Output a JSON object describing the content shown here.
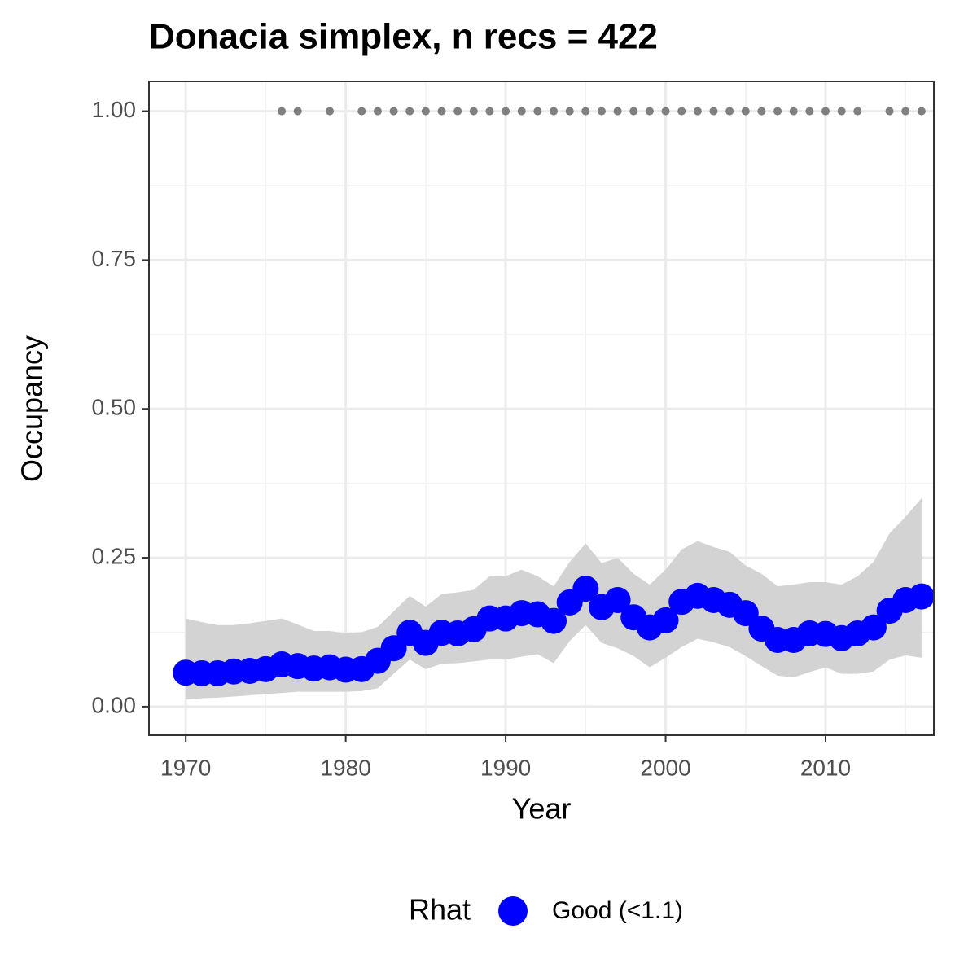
{
  "chart_data": {
    "type": "line",
    "title": "Donacia simplex, n recs = 422",
    "x_label": "Year",
    "y_label": "Occupancy",
    "legend_title": "Rhat",
    "legend_position": "bottom",
    "grid": true,
    "x": [
      1970,
      1971,
      1972,
      1973,
      1974,
      1975,
      1976,
      1977,
      1978,
      1979,
      1980,
      1981,
      1982,
      1983,
      1984,
      1985,
      1986,
      1987,
      1988,
      1989,
      1990,
      1991,
      1992,
      1993,
      1994,
      1995,
      1996,
      1997,
      1998,
      1999,
      2000,
      2001,
      2002,
      2003,
      2004,
      2005,
      2006,
      2007,
      2008,
      2009,
      2010,
      2011,
      2012,
      2013,
      2014,
      2015,
      2016
    ],
    "series": [
      {
        "name": "Good (<1.1)",
        "color": "#0000ff",
        "values": [
          0.057,
          0.056,
          0.056,
          0.059,
          0.06,
          0.063,
          0.071,
          0.068,
          0.064,
          0.066,
          0.062,
          0.063,
          0.077,
          0.098,
          0.124,
          0.107,
          0.124,
          0.123,
          0.13,
          0.148,
          0.148,
          0.157,
          0.155,
          0.144,
          0.175,
          0.198,
          0.167,
          0.179,
          0.15,
          0.133,
          0.145,
          0.176,
          0.186,
          0.179,
          0.171,
          0.157,
          0.131,
          0.112,
          0.112,
          0.123,
          0.122,
          0.115,
          0.123,
          0.133,
          0.161,
          0.179,
          0.185
        ]
      }
    ],
    "ribbon": {
      "color": "#d3d3d3",
      "upper": [
        0.148,
        0.142,
        0.137,
        0.137,
        0.14,
        0.144,
        0.148,
        0.138,
        0.127,
        0.127,
        0.123,
        0.125,
        0.134,
        0.16,
        0.186,
        0.168,
        0.189,
        0.192,
        0.196,
        0.219,
        0.219,
        0.23,
        0.219,
        0.202,
        0.243,
        0.274,
        0.241,
        0.25,
        0.223,
        0.205,
        0.23,
        0.264,
        0.278,
        0.268,
        0.26,
        0.237,
        0.223,
        0.202,
        0.205,
        0.209,
        0.209,
        0.205,
        0.219,
        0.243,
        0.291,
        0.319,
        0.35
      ],
      "lower": [
        0.012,
        0.014,
        0.015,
        0.017,
        0.019,
        0.021,
        0.023,
        0.025,
        0.025,
        0.025,
        0.025,
        0.026,
        0.031,
        0.055,
        0.079,
        0.063,
        0.072,
        0.073,
        0.076,
        0.079,
        0.079,
        0.084,
        0.088,
        0.073,
        0.11,
        0.137,
        0.107,
        0.098,
        0.085,
        0.066,
        0.082,
        0.1,
        0.114,
        0.108,
        0.1,
        0.085,
        0.068,
        0.052,
        0.049,
        0.058,
        0.066,
        0.055,
        0.055,
        0.059,
        0.079,
        0.086,
        0.082
      ]
    },
    "records": {
      "color": "#7f7f7f",
      "x": [
        1976,
        1977,
        1979,
        1981,
        1982,
        1983,
        1984,
        1985,
        1986,
        1987,
        1988,
        1989,
        1990,
        1991,
        1992,
        1993,
        1994,
        1995,
        1996,
        1997,
        1998,
        1999,
        2000,
        2001,
        2002,
        2003,
        2004,
        2005,
        2006,
        2007,
        2008,
        2009,
        2010,
        2011,
        2012,
        2014,
        2015,
        2016
      ],
      "values": [
        1,
        1,
        1,
        1,
        1,
        1,
        1,
        1,
        1,
        1,
        1,
        1,
        1,
        1,
        1,
        1,
        1,
        1,
        1,
        1,
        1,
        1,
        1,
        1,
        1,
        1,
        1,
        1,
        1,
        1,
        1,
        1,
        1,
        1,
        1,
        1,
        1,
        1
      ]
    },
    "xlim": [
      1967.7,
      2016.77
    ],
    "ylim": [
      -0.048,
      1.05
    ],
    "xticks": [
      1970,
      1980,
      1990,
      2000,
      2010
    ],
    "yticks": [
      {
        "value": 0,
        "label": "0.00"
      },
      {
        "value": 0.25,
        "label": "0.25"
      },
      {
        "value": 0.5,
        "label": "0.50"
      },
      {
        "value": 0.75,
        "label": "0.75"
      },
      {
        "value": 1,
        "label": "1.00"
      }
    ],
    "minor_xticks": [
      1975,
      1985,
      1995,
      2005,
      2015
    ],
    "minor_yticks": [
      0.125,
      0.375,
      0.625,
      0.875
    ]
  }
}
